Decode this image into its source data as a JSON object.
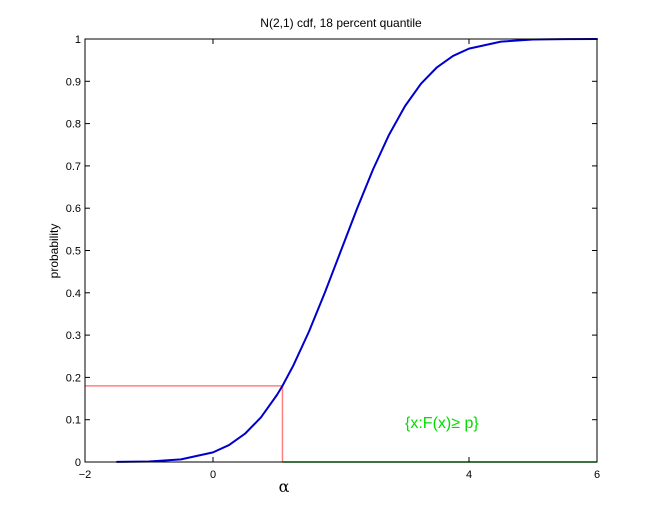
{
  "chart_data": {
    "type": "line",
    "title": "N(2,1) cdf, 18 percent quantile",
    "xlabel": "α",
    "ylabel": "probability",
    "xlim": [
      -2,
      6
    ],
    "ylim": [
      0,
      1
    ],
    "x_ticks": [
      {
        "value": -2,
        "label": "−2"
      },
      {
        "value": 0,
        "label": "0"
      },
      {
        "value": 4,
        "label": "4"
      },
      {
        "value": 6,
        "label": "6"
      }
    ],
    "y_ticks": [
      {
        "value": 0,
        "label": "0"
      },
      {
        "value": 0.1,
        "label": "0.1"
      },
      {
        "value": 0.2,
        "label": "0.2"
      },
      {
        "value": 0.3,
        "label": "0.3"
      },
      {
        "value": 0.4,
        "label": "0.4"
      },
      {
        "value": 0.5,
        "label": "0.5"
      },
      {
        "value": 0.6,
        "label": "0.6"
      },
      {
        "value": 0.7,
        "label": "0.7"
      },
      {
        "value": 0.8,
        "label": "0.8"
      },
      {
        "value": 0.9,
        "label": "0.9"
      },
      {
        "value": 1,
        "label": "1"
      }
    ],
    "grid": false,
    "legend": "none",
    "series": [
      {
        "color": "#0000cc",
        "x": [
          -1.5,
          -1.0,
          -0.5,
          0.0,
          0.25,
          0.5,
          0.75,
          1.0,
          1.085,
          1.25,
          1.5,
          1.75,
          2.0,
          2.25,
          2.5,
          2.75,
          3.0,
          3.25,
          3.5,
          3.75,
          4.0,
          4.5,
          5.0,
          5.5,
          6.0
        ],
        "y": [
          0.0002,
          0.0013,
          0.0062,
          0.0228,
          0.0401,
          0.0668,
          0.1056,
          0.1587,
          0.18,
          0.2266,
          0.3085,
          0.4013,
          0.5,
          0.5987,
          0.6915,
          0.7734,
          0.8413,
          0.8944,
          0.9332,
          0.9599,
          0.9772,
          0.9938,
          0.9987,
          0.9998,
          1.0
        ]
      }
    ],
    "quantile_guides": {
      "color": "#ff8080",
      "alpha_x": 1.085,
      "p": 0.18
    },
    "set_segment": {
      "color": "#00cc00",
      "x_start": 1.085,
      "x_end": 6,
      "y": 0
    },
    "annotation": {
      "text": "{x:F(x)≥ p}",
      "color": "#00dd00",
      "x": 3.0,
      "y": 0.08
    },
    "colors": {
      "axes": "#000000",
      "curve": "#0000cc",
      "guides": "#ff8080",
      "set": "#00cc00"
    }
  }
}
